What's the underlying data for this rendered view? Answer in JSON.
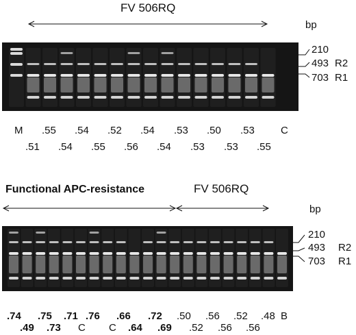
{
  "panel_top": {
    "title": "FV 506RQ",
    "bp_label": "bp",
    "markers": [
      {
        "size": "210",
        "region": ""
      },
      {
        "size": "493",
        "region": "R2"
      },
      {
        "size": "703",
        "region": "R1"
      }
    ],
    "lane_row1": [
      "M",
      ".55",
      ".54",
      ".52",
      ".54",
      ".53",
      ".50",
      ".53",
      "C"
    ],
    "lane_row2": [
      ".51",
      ".54",
      ".55",
      ".56",
      ".54",
      ".53",
      ".53",
      ".55"
    ]
  },
  "panel_bottom": {
    "title_left": "Functional  APC-resistance",
    "title_right": "FV 506RQ",
    "bp_label": "bp",
    "markers": [
      {
        "size": "210",
        "region": ""
      },
      {
        "size": "493",
        "region": "R2"
      },
      {
        "size": "703",
        "region": "R1"
      }
    ],
    "lane_row1": [
      ".74",
      ".75",
      ".71",
      ".76",
      ".66",
      ".72",
      ".50",
      ".56",
      ".52",
      ".48",
      "B"
    ],
    "lane_row2": [
      ".49",
      ".73",
      "C",
      "C",
      ".64",
      ".69",
      ".52",
      ".56",
      ".56"
    ]
  }
}
